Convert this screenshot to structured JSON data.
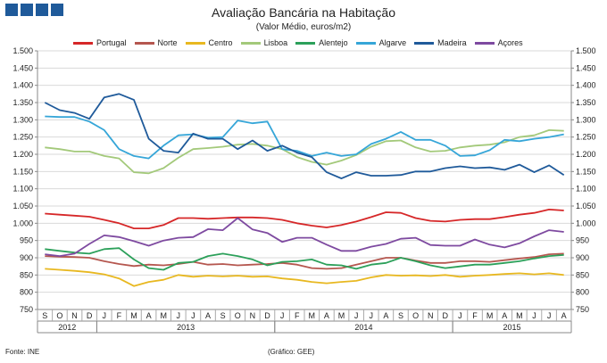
{
  "chart_data": {
    "type": "line",
    "title": "Avaliação Bancária na Habitação",
    "subtitle": "(Valor Médio, euros/m2)",
    "source": "Fonte: INE",
    "credit": "(Gráfico: GEE)",
    "ylim": [
      750,
      1500
    ],
    "yticks": [
      "750",
      "800",
      "850",
      "900",
      "950",
      "1.000",
      "1.050",
      "1.100",
      "1.150",
      "1.200",
      "1.250",
      "1.300",
      "1.350",
      "1.400",
      "1.450",
      "1.500"
    ],
    "ytick_values": [
      750,
      800,
      850,
      900,
      950,
      1000,
      1050,
      1100,
      1150,
      1200,
      1250,
      1300,
      1350,
      1400,
      1450,
      1500
    ],
    "months": [
      "S",
      "O",
      "N",
      "D",
      "J",
      "F",
      "M",
      "A",
      "M",
      "J",
      "J",
      "A",
      "S",
      "O",
      "N",
      "D",
      "J",
      "F",
      "M",
      "A",
      "M",
      "J",
      "J",
      "A",
      "S",
      "O",
      "N",
      "D",
      "J",
      "F",
      "M",
      "A",
      "M",
      "J",
      "J",
      "A"
    ],
    "years": [
      {
        "label": "2012",
        "start": 0,
        "end": 3
      },
      {
        "label": "2013",
        "start": 4,
        "end": 15
      },
      {
        "label": "2014",
        "start": 16,
        "end": 27
      },
      {
        "label": "2015",
        "start": 28,
        "end": 35
      }
    ],
    "series": [
      {
        "name": "Portugal",
        "color": "#d62728",
        "values": [
          1028,
          1025,
          1022,
          1019,
          1010,
          1000,
          985,
          985,
          995,
          1015,
          1015,
          1013,
          1015,
          1017,
          1017,
          1015,
          1010,
          1000,
          993,
          988,
          995,
          1005,
          1018,
          1032,
          1030,
          1015,
          1007,
          1005,
          1010,
          1012,
          1012,
          1018,
          1025,
          1030,
          1040,
          1037
        ]
      },
      {
        "name": "Norte",
        "color": "#b5574f",
        "values": [
          905,
          903,
          902,
          900,
          890,
          882,
          876,
          880,
          878,
          882,
          888,
          880,
          882,
          878,
          880,
          882,
          885,
          880,
          870,
          868,
          870,
          880,
          890,
          900,
          900,
          892,
          885,
          885,
          890,
          890,
          888,
          893,
          898,
          902,
          910,
          912
        ]
      },
      {
        "name": "Centro",
        "color": "#e8b820",
        "values": [
          868,
          865,
          862,
          858,
          852,
          840,
          818,
          830,
          836,
          850,
          845,
          848,
          846,
          848,
          845,
          846,
          840,
          836,
          830,
          826,
          830,
          833,
          843,
          850,
          848,
          849,
          847,
          850,
          845,
          848,
          850,
          853,
          855,
          852,
          855,
          850
        ]
      },
      {
        "name": "Lisboa",
        "color": "#a3c97a",
        "values": [
          1220,
          1215,
          1208,
          1208,
          1195,
          1188,
          1148,
          1145,
          1160,
          1190,
          1215,
          1218,
          1222,
          1228,
          1230,
          1225,
          1215,
          1192,
          1178,
          1170,
          1182,
          1198,
          1222,
          1238,
          1240,
          1220,
          1208,
          1210,
          1220,
          1225,
          1228,
          1235,
          1250,
          1255,
          1270,
          1268
        ]
      },
      {
        "name": "Alentejo",
        "color": "#2ca05a",
        "values": [
          925,
          920,
          915,
          912,
          925,
          928,
          895,
          870,
          865,
          885,
          888,
          905,
          912,
          905,
          895,
          878,
          888,
          890,
          895,
          880,
          878,
          868,
          880,
          885,
          900,
          890,
          878,
          870,
          875,
          880,
          880,
          885,
          890,
          898,
          905,
          908
        ]
      },
      {
        "name": "Algarve",
        "color": "#36a6d8",
        "values": [
          1310,
          1308,
          1308,
          1295,
          1270,
          1215,
          1195,
          1188,
          1225,
          1255,
          1258,
          1248,
          1250,
          1298,
          1290,
          1295,
          1215,
          1210,
          1195,
          1205,
          1195,
          1200,
          1230,
          1245,
          1265,
          1242,
          1242,
          1225,
          1195,
          1197,
          1212,
          1242,
          1238,
          1245,
          1250,
          1258
        ]
      },
      {
        "name": "Madeira",
        "color": "#1f5a9a",
        "values": [
          1350,
          1328,
          1320,
          1303,
          1365,
          1375,
          1358,
          1245,
          1210,
          1205,
          1260,
          1245,
          1245,
          1215,
          1240,
          1210,
          1225,
          1205,
          1192,
          1148,
          1130,
          1148,
          1138,
          1138,
          1140,
          1150,
          1150,
          1160,
          1165,
          1160,
          1162,
          1155,
          1170,
          1148,
          1168,
          1140
        ]
      },
      {
        "name": "Açores",
        "color": "#7e4aa0",
        "values": [
          910,
          905,
          912,
          940,
          965,
          960,
          948,
          935,
          950,
          958,
          960,
          983,
          980,
          1015,
          982,
          972,
          946,
          958,
          958,
          938,
          920,
          920,
          932,
          940,
          955,
          958,
          937,
          935,
          935,
          953,
          938,
          930,
          942,
          962,
          980,
          975
        ]
      }
    ]
  }
}
